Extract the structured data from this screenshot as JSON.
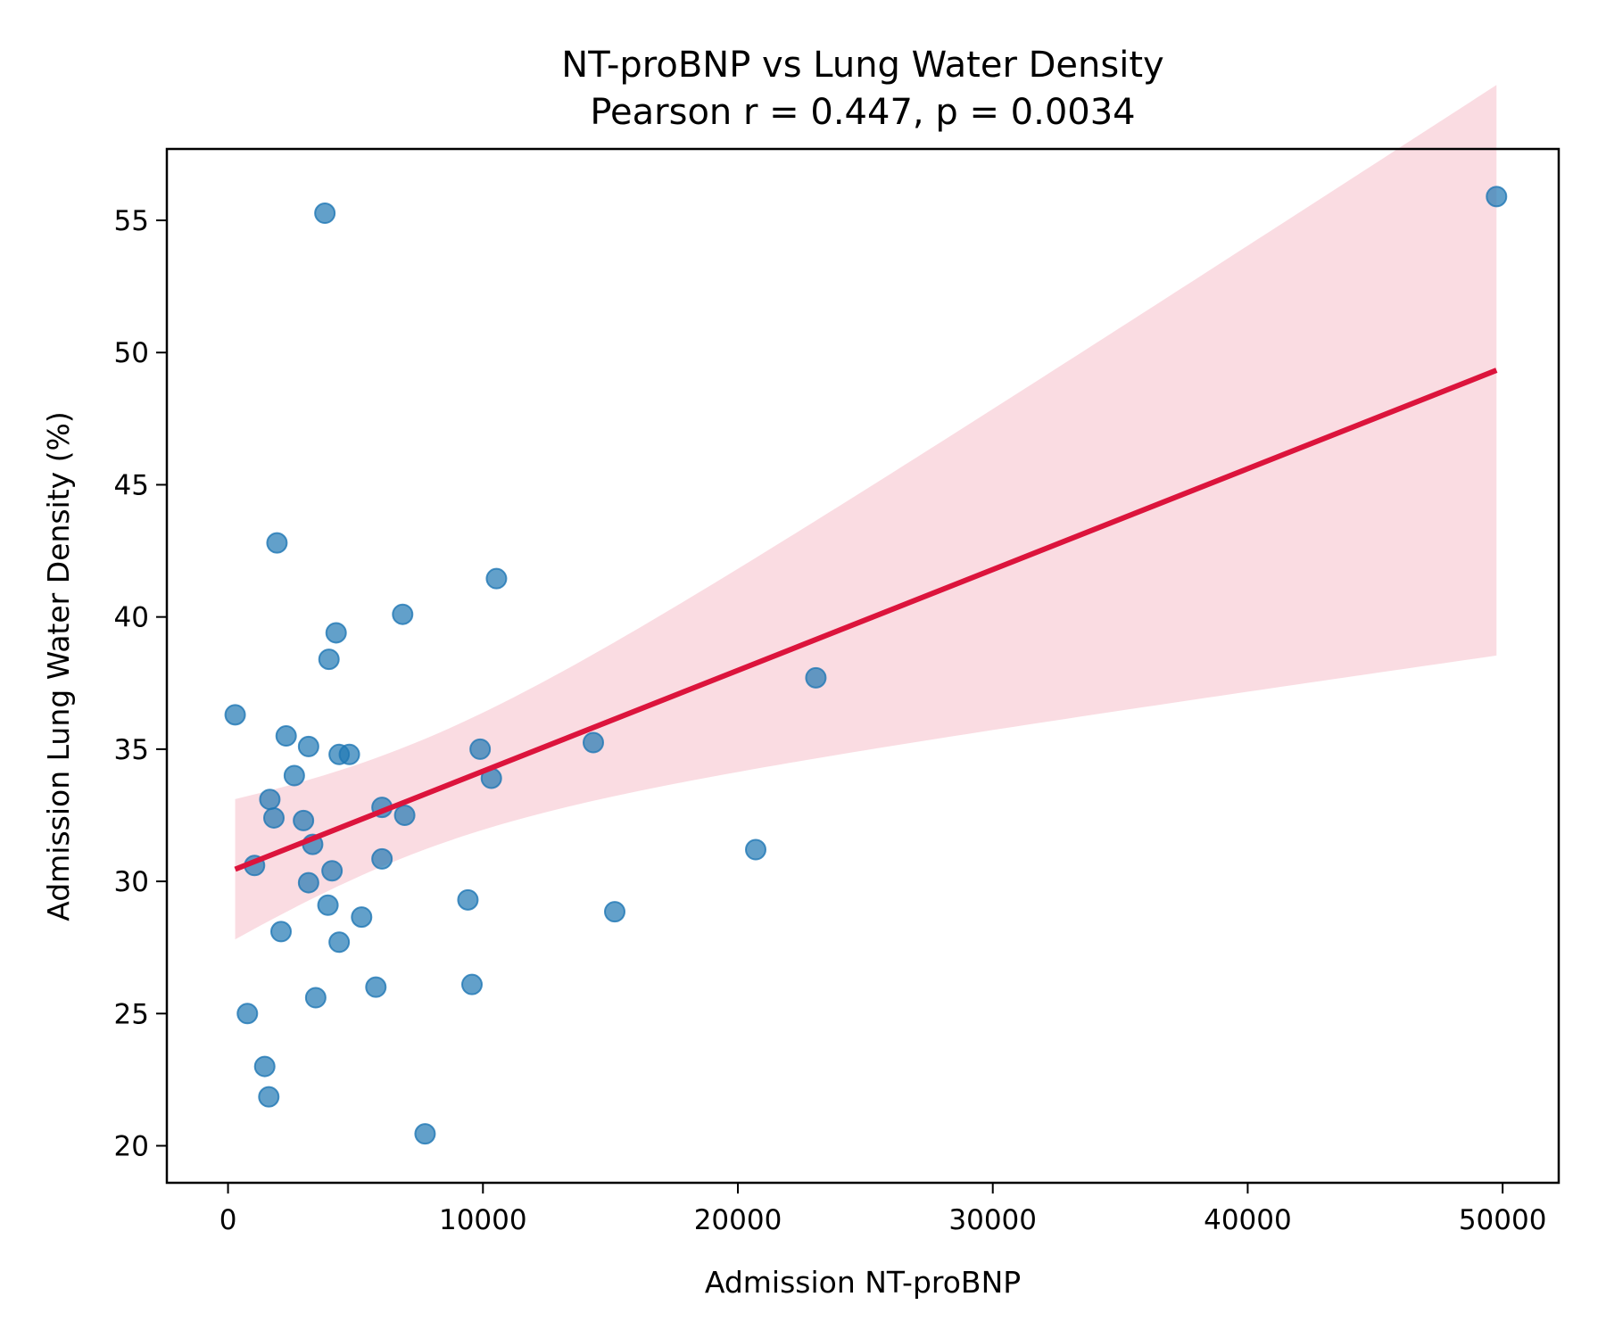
{
  "chart_data": {
    "type": "scatter",
    "title": "NT-proBNP vs Lung Water Density",
    "subtitle": "Pearson r = 0.447, p = 0.0034",
    "xlabel": "Admission NT-proBNP",
    "ylabel": "Admission Lung Water Density (%)",
    "xlim": [
      -2400,
      52200
    ],
    "ylim": [
      18.6,
      57.7
    ],
    "xticks": [
      0,
      10000,
      20000,
      30000,
      40000,
      50000
    ],
    "yticks": [
      20,
      25,
      30,
      35,
      40,
      45,
      50,
      55
    ],
    "grid": false,
    "points": [
      [
        3800,
        55.27
      ],
      [
        49760,
        55.9
      ],
      [
        1920,
        42.8
      ],
      [
        10530,
        41.45
      ],
      [
        6850,
        40.1
      ],
      [
        4240,
        39.4
      ],
      [
        3960,
        38.4
      ],
      [
        23060,
        37.7
      ],
      [
        280,
        36.3
      ],
      [
        2280,
        35.5
      ],
      [
        3160,
        35.1
      ],
      [
        4360,
        34.8
      ],
      [
        4760,
        34.8
      ],
      [
        9890,
        35.0
      ],
      [
        14330,
        35.25
      ],
      [
        2600,
        34.0
      ],
      [
        10330,
        33.9
      ],
      [
        1640,
        33.1
      ],
      [
        6040,
        32.8
      ],
      [
        1800,
        32.4
      ],
      [
        2960,
        32.3
      ],
      [
        6930,
        32.5
      ],
      [
        3320,
        31.4
      ],
      [
        20700,
        31.2
      ],
      [
        6040,
        30.85
      ],
      [
        1040,
        30.6
      ],
      [
        4080,
        30.4
      ],
      [
        3160,
        29.95
      ],
      [
        9410,
        29.3
      ],
      [
        3920,
        29.1
      ],
      [
        5240,
        28.65
      ],
      [
        15170,
        28.85
      ],
      [
        2080,
        28.1
      ],
      [
        4360,
        27.7
      ],
      [
        5800,
        26.0
      ],
      [
        9570,
        26.1
      ],
      [
        3440,
        25.6
      ],
      [
        760,
        25.0
      ],
      [
        1440,
        23.0
      ],
      [
        1600,
        21.85
      ],
      [
        7730,
        20.45
      ]
    ],
    "fit": {
      "type": "linear regression with 95% CI",
      "x_range": [
        280,
        49760
      ]
    },
    "colors": {
      "points": "#1f77b4",
      "fit_line": "#dc143c",
      "ci_band": "#dc143c"
    }
  }
}
